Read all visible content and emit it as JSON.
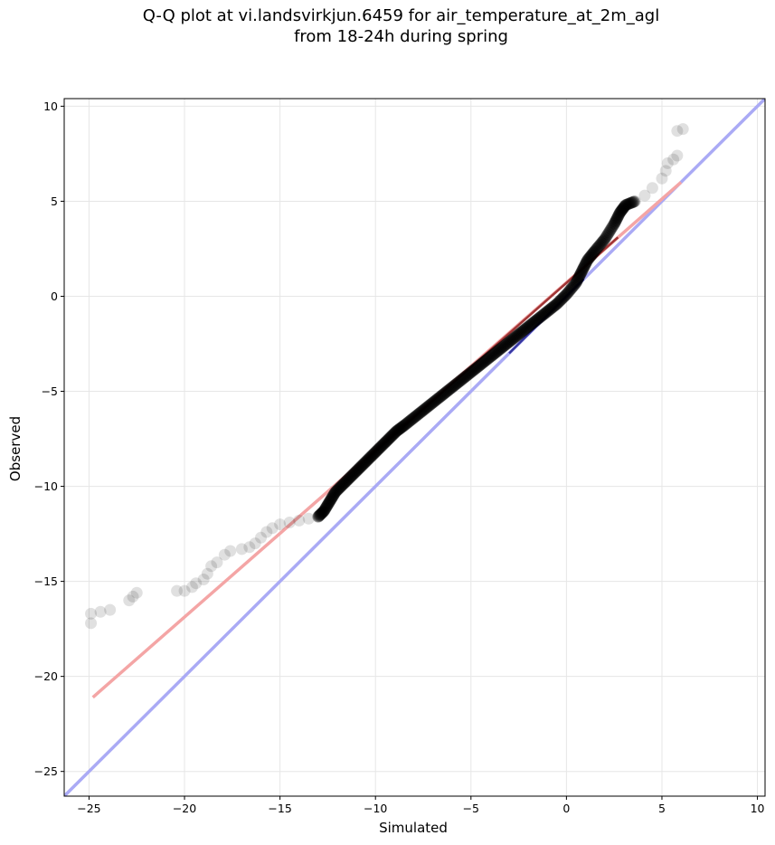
{
  "chart_data": {
    "type": "scatter",
    "title": "Q-Q plot at vi.landsvirkjun.6459 for air_temperature_at_2m_agl",
    "subtitle": "from 18-24h during spring",
    "xlabel": "Simulated",
    "ylabel": "Observed",
    "xlim": [
      -26.3,
      10.4
    ],
    "ylim": [
      -26.3,
      10.4
    ],
    "x_ticks": [
      -25,
      -20,
      -15,
      -10,
      -5,
      0,
      5,
      10
    ],
    "y_ticks": [
      -25,
      -20,
      -15,
      -10,
      -5,
      0,
      5,
      10
    ],
    "x_tick_labels": [
      "−25",
      "−20",
      "−15",
      "−10",
      "−5",
      "0",
      "5",
      "10"
    ],
    "y_tick_labels": [
      "−25",
      "−20",
      "−15",
      "−10",
      "−5",
      "0",
      "5",
      "10"
    ],
    "grid": true,
    "legend": "none",
    "colors": {
      "points": "#000000",
      "fit_line": "#f4a5a5",
      "identity_line": "#aaaaf5",
      "fit_segment": "#8b1a1a",
      "identity_segment": "#1a1a8b"
    },
    "series": [
      {
        "values": [
          {
            "x": -24.9,
            "y": -17.2
          },
          {
            "x": -24.9,
            "y": -16.7
          },
          {
            "x": -24.4,
            "y": -16.6
          },
          {
            "x": -23.9,
            "y": -16.5
          },
          {
            "x": -22.9,
            "y": -16.0
          },
          {
            "x": -22.7,
            "y": -15.8
          },
          {
            "x": -22.5,
            "y": -15.6
          },
          {
            "x": -20.4,
            "y": -15.5
          },
          {
            "x": -20.0,
            "y": -15.5
          },
          {
            "x": -19.6,
            "y": -15.3
          },
          {
            "x": -19.4,
            "y": -15.1
          },
          {
            "x": -19.0,
            "y": -14.9
          },
          {
            "x": -18.8,
            "y": -14.6
          },
          {
            "x": -18.6,
            "y": -14.2
          },
          {
            "x": -18.3,
            "y": -14.0
          },
          {
            "x": -17.9,
            "y": -13.6
          },
          {
            "x": -17.6,
            "y": -13.4
          },
          {
            "x": -17.0,
            "y": -13.3
          },
          {
            "x": -16.6,
            "y": -13.2
          },
          {
            "x": -16.3,
            "y": -13.0
          },
          {
            "x": -16.0,
            "y": -12.7
          },
          {
            "x": -15.7,
            "y": -12.4
          },
          {
            "x": -15.4,
            "y": -12.2
          },
          {
            "x": -15.0,
            "y": -12.0
          },
          {
            "x": -14.5,
            "y": -11.9
          },
          {
            "x": -14.0,
            "y": -11.8
          },
          {
            "x": -13.5,
            "y": -11.7
          },
          {
            "x": -13.0,
            "y": -11.6
          },
          {
            "x": -12.7,
            "y": -11.3
          },
          {
            "x": -12.4,
            "y": -10.8
          },
          {
            "x": -12.1,
            "y": -10.3
          },
          {
            "x": -11.7,
            "y": -9.9
          },
          {
            "x": -11.3,
            "y": -9.5
          },
          {
            "x": -10.9,
            "y": -9.1
          },
          {
            "x": -10.5,
            "y": -8.7
          },
          {
            "x": -10.1,
            "y": -8.3
          },
          {
            "x": -9.7,
            "y": -7.9
          },
          {
            "x": -9.3,
            "y": -7.5
          },
          {
            "x": -8.9,
            "y": -7.1
          },
          {
            "x": -8.5,
            "y": -6.8
          },
          {
            "x": -8.0,
            "y": -6.4
          },
          {
            "x": -7.5,
            "y": -6.0
          },
          {
            "x": -7.0,
            "y": -5.6
          },
          {
            "x": -6.5,
            "y": -5.2
          },
          {
            "x": -6.0,
            "y": -4.8
          },
          {
            "x": -5.5,
            "y": -4.4
          },
          {
            "x": -5.0,
            "y": -4.0
          },
          {
            "x": -4.5,
            "y": -3.6
          },
          {
            "x": -4.0,
            "y": -3.2
          },
          {
            "x": -3.5,
            "y": -2.8
          },
          {
            "x": -3.0,
            "y": -2.4
          },
          {
            "x": -2.5,
            "y": -2.0
          },
          {
            "x": -2.0,
            "y": -1.6
          },
          {
            "x": -1.5,
            "y": -1.2
          },
          {
            "x": -1.0,
            "y": -0.8
          },
          {
            "x": -0.5,
            "y": -0.4
          },
          {
            "x": 0.0,
            "y": 0.1
          },
          {
            "x": 0.5,
            "y": 0.7
          },
          {
            "x": 0.8,
            "y": 1.3
          },
          {
            "x": 1.1,
            "y": 1.9
          },
          {
            "x": 1.5,
            "y": 2.4
          },
          {
            "x": 2.0,
            "y": 3.0
          },
          {
            "x": 2.5,
            "y": 3.8
          },
          {
            "x": 2.8,
            "y": 4.4
          },
          {
            "x": 3.1,
            "y": 4.8
          },
          {
            "x": 3.6,
            "y": 5.0
          },
          {
            "x": 4.1,
            "y": 5.3
          },
          {
            "x": 4.5,
            "y": 5.7
          },
          {
            "x": 5.0,
            "y": 6.2
          },
          {
            "x": 5.2,
            "y": 6.6
          },
          {
            "x": 5.3,
            "y": 7.0
          },
          {
            "x": 5.6,
            "y": 7.2
          },
          {
            "x": 5.8,
            "y": 7.4
          },
          {
            "x": 5.8,
            "y": 8.7
          },
          {
            "x": 6.1,
            "y": 8.8
          }
        ]
      }
    ],
    "fit_line": [
      {
        "x": -24.8,
        "y": -21.1
      },
      {
        "x": 6.0,
        "y": 6.0
      }
    ],
    "identity_line": [
      {
        "x": -26.3,
        "y": -26.3
      },
      {
        "x": 10.4,
        "y": 10.4
      }
    ]
  }
}
